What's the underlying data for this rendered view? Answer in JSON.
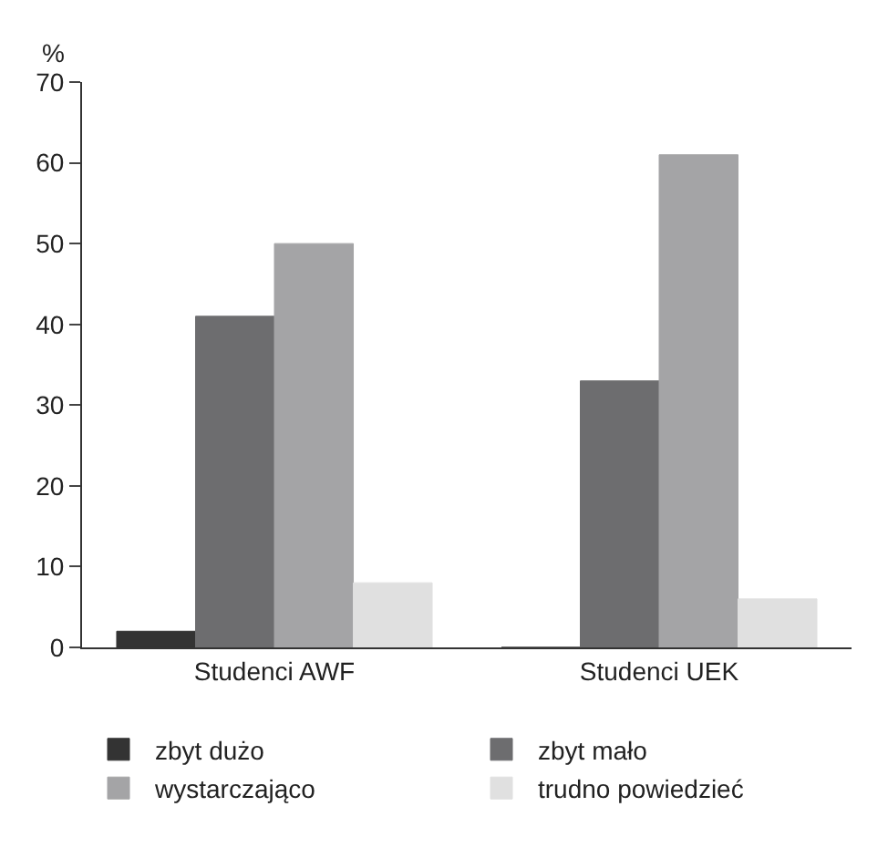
{
  "chart_data": {
    "type": "bar",
    "ylabel": "%",
    "categories": [
      "Studenci AWF",
      "Studenci UEK"
    ],
    "series": [
      {
        "name": "zbyt dużo",
        "color": "#333333",
        "values": [
          2,
          0
        ]
      },
      {
        "name": "zbyt mało",
        "color": "#6d6d6f",
        "values": [
          41,
          33
        ]
      },
      {
        "name": "wystarczająco",
        "color": "#a4a4a6",
        "values": [
          50,
          61
        ]
      },
      {
        "name": "trudno powiedzieć",
        "color": "#e0e0e0",
        "values": [
          8,
          6
        ]
      }
    ],
    "ylim": [
      0,
      70
    ],
    "yticks": [
      0,
      10,
      20,
      30,
      40,
      50,
      60,
      70
    ],
    "legend": "bottom"
  }
}
